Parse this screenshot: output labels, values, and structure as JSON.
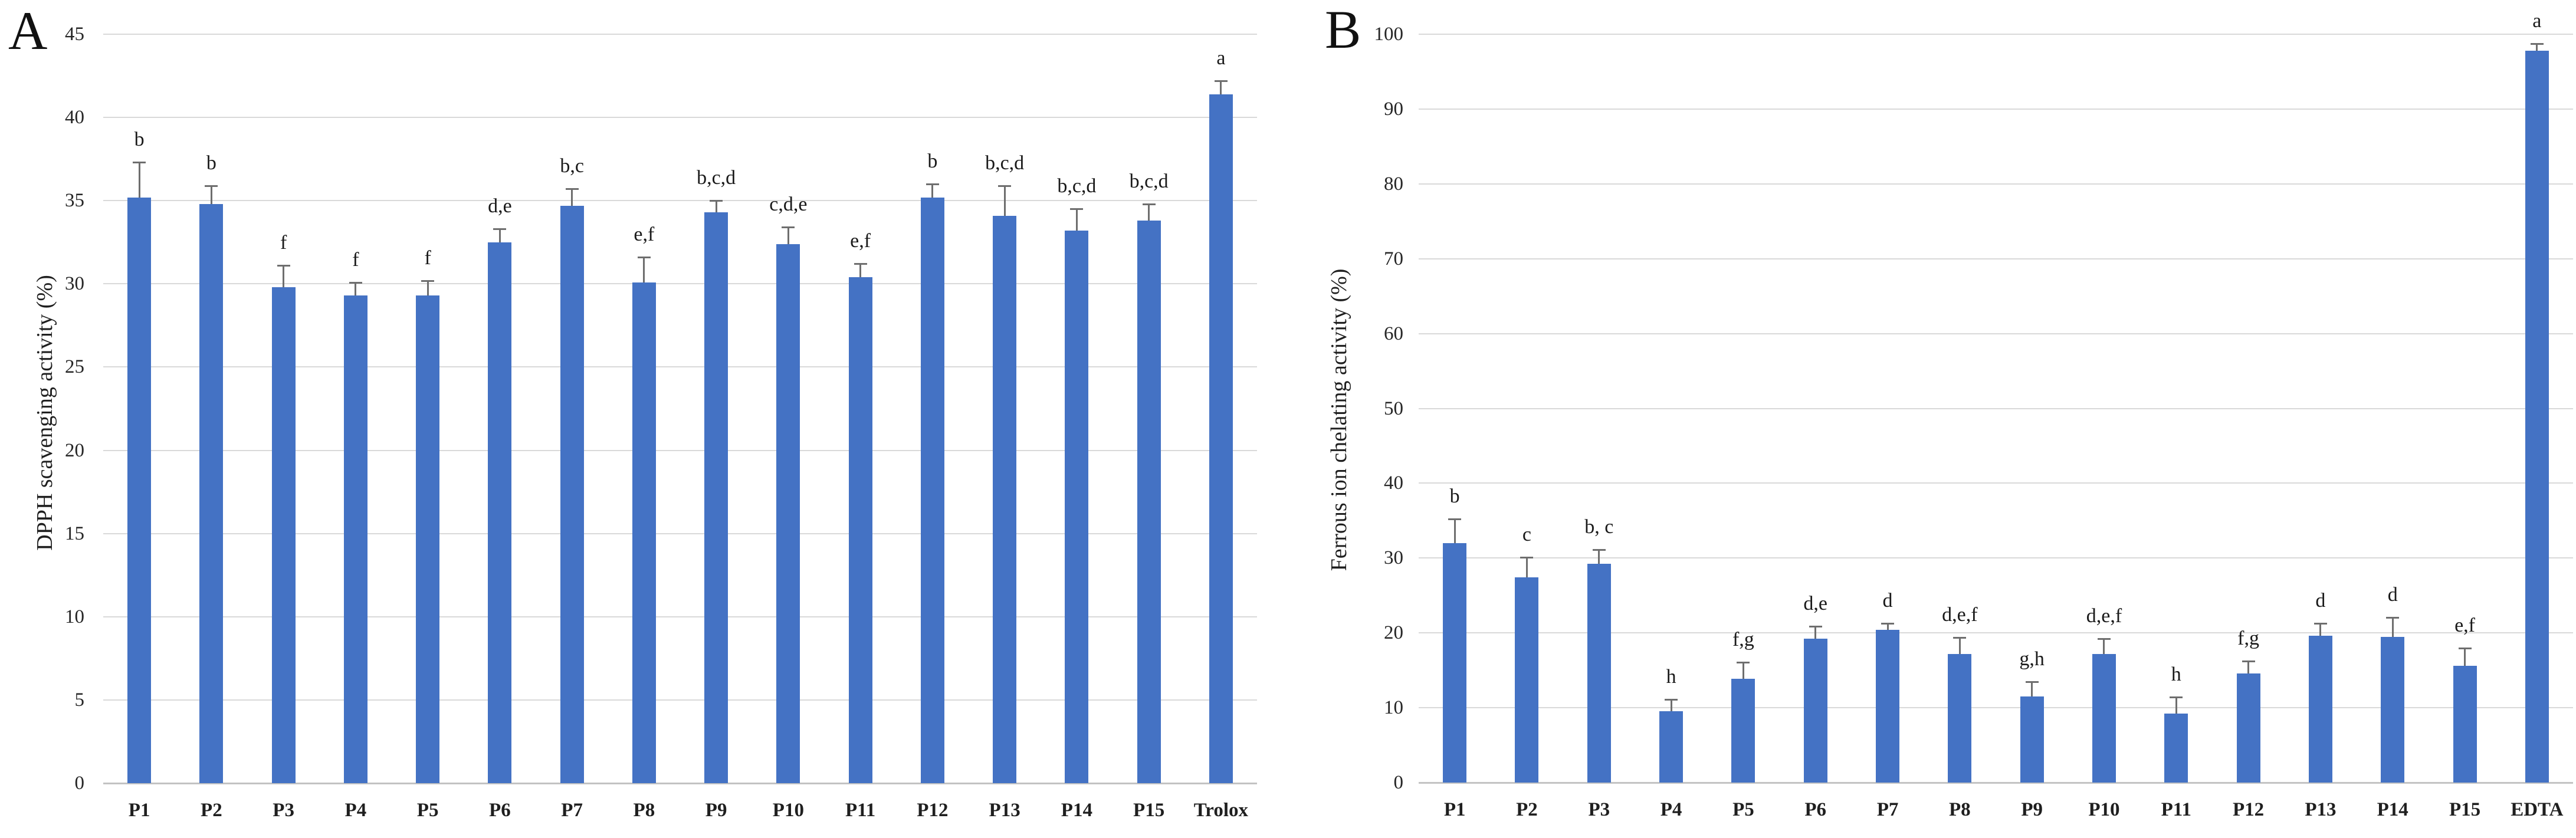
{
  "figure": {
    "bar_color": "#4472c4",
    "gridline_color": "#d9d9d9",
    "axis_line_color": "#c3c3c3",
    "error_bar_color": "#6e6e6e",
    "text_color": "#1f1f1f"
  },
  "chart_data": [
    {
      "type": "bar",
      "panel_label": "A",
      "title": "",
      "xlabel": "",
      "ylabel": "DPPH scavenging activity (%)",
      "ylim": [
        0,
        45
      ],
      "ytick_step": 5,
      "grid": true,
      "legend": "none",
      "categories": [
        "P1",
        "P2",
        "P3",
        "P4",
        "P5",
        "P6",
        "P7",
        "P8",
        "P9",
        "P10",
        "P11",
        "P12",
        "P13",
        "P14",
        "P15",
        "Trolox"
      ],
      "values": [
        35.2,
        34.8,
        29.8,
        29.3,
        29.3,
        32.5,
        34.7,
        30.1,
        34.3,
        32.4,
        30.4,
        35.2,
        34.1,
        33.2,
        33.8,
        41.4
      ],
      "errors_upper": [
        2.1,
        1.1,
        1.3,
        0.8,
        0.9,
        0.8,
        1.0,
        1.5,
        0.7,
        1.0,
        0.8,
        0.8,
        1.8,
        1.3,
        1.0,
        0.8
      ],
      "sig_labels": [
        "b",
        "b",
        "f",
        "f",
        "f",
        "d,e",
        "b,c",
        "e,f",
        "b,c,d",
        "c,d,e",
        "e,f",
        "b",
        "b,c,d",
        "b,c,d",
        "b,c,d",
        "a"
      ]
    },
    {
      "type": "bar",
      "panel_label": "B",
      "title": "",
      "xlabel": "",
      "ylabel": "Ferrous ion chelating activity (%)",
      "ylim": [
        0,
        100
      ],
      "ytick_step": 10,
      "grid": true,
      "legend": "none",
      "categories": [
        "P1",
        "P2",
        "P3",
        "P4",
        "P5",
        "P6",
        "P7",
        "P8",
        "P9",
        "P10",
        "P11",
        "P12",
        "P13",
        "P14",
        "P15",
        "EDTA"
      ],
      "values": [
        32.0,
        27.4,
        29.2,
        9.5,
        13.9,
        19.2,
        20.4,
        17.2,
        11.5,
        17.2,
        9.2,
        14.6,
        19.6,
        19.5,
        15.6,
        97.8
      ],
      "errors_upper": [
        3.2,
        2.7,
        1.9,
        1.6,
        2.2,
        1.7,
        0.9,
        2.2,
        2.0,
        2.0,
        2.2,
        1.6,
        1.7,
        2.6,
        2.4,
        0.9
      ],
      "sig_labels": [
        "b",
        "c",
        "b, c",
        "h",
        "f,g",
        "d,e",
        "d",
        "d,e,f",
        "g,h",
        "d,e,f",
        "h",
        "f,g",
        "d",
        "d",
        "e,f",
        "a"
      ]
    }
  ]
}
